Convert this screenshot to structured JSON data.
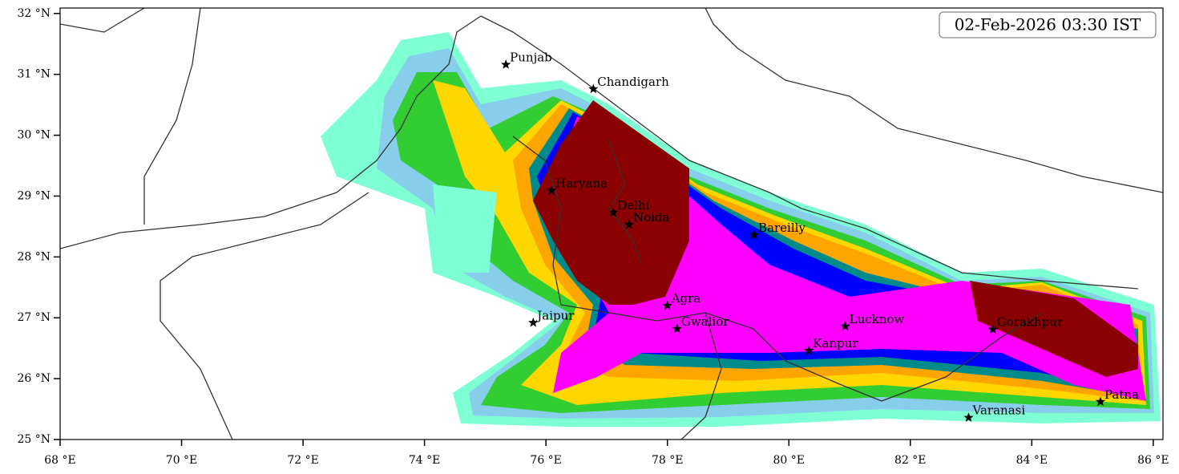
{
  "map": {
    "timestamp": "02-Feb-2026 03:30 IST",
    "xlim": [
      68,
      86.16
    ],
    "ylim": [
      25,
      32.09
    ],
    "xticks": [
      {
        "value": 68,
        "label": "68 °E"
      },
      {
        "value": 70,
        "label": "70 °E"
      },
      {
        "value": 72,
        "label": "72 °E"
      },
      {
        "value": 74,
        "label": "74 °E"
      },
      {
        "value": 76,
        "label": "76 °E"
      },
      {
        "value": 78,
        "label": "78 °E"
      },
      {
        "value": 80,
        "label": "80 °E"
      },
      {
        "value": 82,
        "label": "82 °E"
      },
      {
        "value": 84,
        "label": "84 °E"
      },
      {
        "value": 86,
        "label": "86 °E"
      }
    ],
    "yticks": [
      {
        "value": 25,
        "label": "25 °N"
      },
      {
        "value": 26,
        "label": "26 °N"
      },
      {
        "value": 27,
        "label": "27 °N"
      },
      {
        "value": 28,
        "label": "28 °N"
      },
      {
        "value": 29,
        "label": "29 °N"
      },
      {
        "value": 30,
        "label": "30 °N"
      },
      {
        "value": 31,
        "label": "31 °N"
      },
      {
        "value": 32,
        "label": "32 °N"
      }
    ],
    "cities": [
      {
        "name": "Punjab",
        "lon": 75.34,
        "lat": 31.16
      },
      {
        "name": "Chandigarh",
        "lon": 76.78,
        "lat": 30.76
      },
      {
        "name": "Haryana",
        "lon": 76.09,
        "lat": 29.09
      },
      {
        "name": "Delhi",
        "lon": 77.11,
        "lat": 28.73
      },
      {
        "name": "Noida",
        "lon": 77.37,
        "lat": 28.53
      },
      {
        "name": "Bareilly",
        "lon": 79.43,
        "lat": 28.36
      },
      {
        "name": "Agra",
        "lon": 78.0,
        "lat": 27.2
      },
      {
        "name": "Jaipur",
        "lon": 75.79,
        "lat": 26.92
      },
      {
        "name": "Gwalior",
        "lon": 78.16,
        "lat": 26.82
      },
      {
        "name": "Lucknow",
        "lon": 80.93,
        "lat": 26.86
      },
      {
        "name": "Kanpur",
        "lon": 80.33,
        "lat": 26.46
      },
      {
        "name": "Gorakhpur",
        "lon": 83.36,
        "lat": 26.81
      },
      {
        "name": "Patna",
        "lon": 85.13,
        "lat": 25.62
      },
      {
        "name": "Varanasi",
        "lon": 82.96,
        "lat": 25.36
      }
    ]
  }
}
